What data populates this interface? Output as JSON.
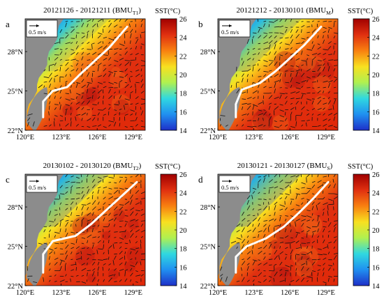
{
  "figure": {
    "axis_ticks": {
      "x": [
        "120°E",
        "123°E",
        "126°E",
        "129°E"
      ],
      "y": [
        "22°N",
        "25°N",
        "28°N"
      ]
    },
    "colorbar": {
      "label": "SST(°C)",
      "ticks": [
        "26",
        "24",
        "22",
        "20",
        "18",
        "16",
        "14"
      ]
    },
    "scale_label": "0.5 m/s"
  },
  "chart_data": [
    {
      "type": "heatmap",
      "panel": "a",
      "title": "20121126 - 20121211 (BMU",
      "title_subscript": "T1",
      "title_suffix": ")",
      "x_range": [
        120,
        130
      ],
      "y_range": [
        22,
        30.5
      ],
      "colorbar_range": [
        14,
        26
      ],
      "units": "°C",
      "color_stops": [
        "#1e2fc8",
        "#2090f0",
        "#30d8e0",
        "#b0f050",
        "#f8e020",
        "#f88010",
        "#e03010",
        "#a00000"
      ],
      "kuroshio_path": [
        [
          121.5,
          23.0
        ],
        [
          121.5,
          24.2
        ],
        [
          122.3,
          25.0
        ],
        [
          123.5,
          25.3
        ],
        [
          124.5,
          26.2
        ],
        [
          125.8,
          27.3
        ],
        [
          127.0,
          28.3
        ],
        [
          128.5,
          29.9
        ]
      ],
      "cold_intensity": 0.5
    },
    {
      "type": "heatmap",
      "panel": "b",
      "title": "20121212 - 20130101 (BMU",
      "title_subscript": "M",
      "title_suffix": ")",
      "x_range": [
        120,
        130
      ],
      "y_range": [
        22,
        30.5
      ],
      "colorbar_range": [
        14,
        26
      ],
      "units": "°C",
      "color_stops": [
        "#1e2fc8",
        "#2090f0",
        "#30d8e0",
        "#b0f050",
        "#f8e020",
        "#f88010",
        "#e03010",
        "#a00000"
      ],
      "kuroshio_path": [
        [
          121.5,
          23.0
        ],
        [
          121.5,
          24.0
        ],
        [
          122.0,
          25.1
        ],
        [
          123.5,
          25.6
        ],
        [
          124.8,
          26.5
        ],
        [
          126.0,
          27.5
        ],
        [
          127.2,
          28.5
        ],
        [
          128.6,
          29.9
        ]
      ],
      "cold_intensity": 0.7
    },
    {
      "type": "heatmap",
      "panel": "c",
      "title": "20130102 - 20130120 (BMU",
      "title_subscript": "T2",
      "title_suffix": ")",
      "x_range": [
        120,
        130
      ],
      "y_range": [
        22,
        30.5
      ],
      "colorbar_range": [
        14,
        26
      ],
      "units": "°C",
      "color_stops": [
        "#1e2fc8",
        "#2090f0",
        "#30d8e0",
        "#b0f050",
        "#f8e020",
        "#f88010",
        "#e03010",
        "#a00000"
      ],
      "kuroshio_path": [
        [
          121.5,
          23.0
        ],
        [
          121.5,
          24.4
        ],
        [
          122.3,
          25.4
        ],
        [
          124.2,
          25.8
        ],
        [
          125.5,
          26.7
        ],
        [
          126.8,
          27.8
        ],
        [
          128.0,
          28.8
        ],
        [
          129.3,
          29.9
        ]
      ],
      "cold_intensity": 0.9
    },
    {
      "type": "heatmap",
      "panel": "d",
      "title": "20130121 - 20130127 (BMU",
      "title_subscript": "S",
      "title_suffix": ")",
      "x_range": [
        120,
        130
      ],
      "y_range": [
        22,
        30.5
      ],
      "colorbar_range": [
        14,
        26
      ],
      "units": "°C",
      "color_stops": [
        "#1e2fc8",
        "#2090f0",
        "#30d8e0",
        "#b0f050",
        "#f8e020",
        "#f88010",
        "#e03010",
        "#a00000"
      ],
      "kuroshio_path": [
        [
          121.5,
          23.0
        ],
        [
          121.5,
          24.2
        ],
        [
          122.4,
          25.0
        ],
        [
          124.0,
          25.6
        ],
        [
          125.5,
          26.5
        ],
        [
          126.8,
          27.6
        ],
        [
          128.0,
          28.7
        ],
        [
          129.2,
          29.9
        ]
      ],
      "cold_intensity": 1.0
    }
  ]
}
